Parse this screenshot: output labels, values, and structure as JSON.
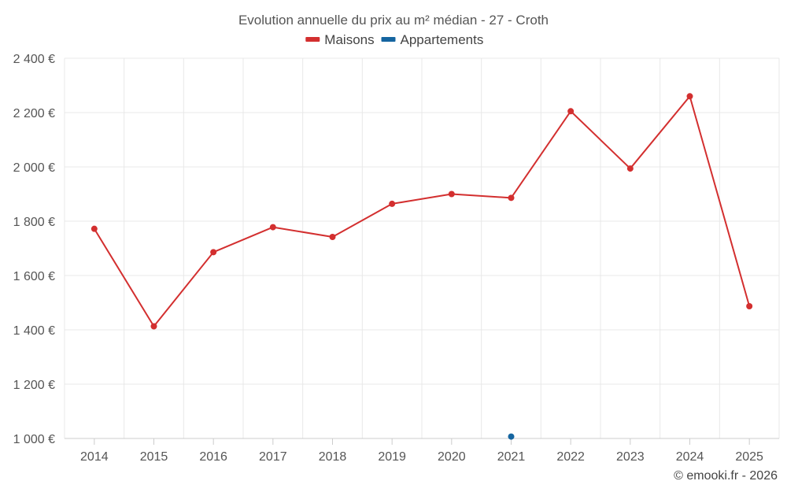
{
  "chart_data": {
    "type": "line",
    "title": "Evolution annuelle du prix au m² médian - 27 - Croth",
    "categories": [
      "2014",
      "2015",
      "2016",
      "2017",
      "2018",
      "2019",
      "2020",
      "2021",
      "2022",
      "2023",
      "2024",
      "2025"
    ],
    "series": [
      {
        "name": "Maisons",
        "color": "#d32f2f",
        "values": [
          1772,
          1413,
          1686,
          1778,
          1742,
          1864,
          1900,
          1886,
          2205,
          1994,
          2260,
          1487
        ]
      },
      {
        "name": "Appartements",
        "color": "#1565a0",
        "values": [
          null,
          null,
          null,
          null,
          null,
          null,
          null,
          1007,
          null,
          null,
          null,
          null
        ]
      }
    ],
    "ylim": [
      1000,
      2400
    ],
    "yticks": [
      1000,
      1200,
      1400,
      1600,
      1800,
      2000,
      2200,
      2400
    ],
    "ytick_labels": [
      "1 000 €",
      "1 200 €",
      "1 400 €",
      "1 600 €",
      "1 800 €",
      "2 000 €",
      "2 200 €",
      "2 400 €"
    ],
    "grid": true,
    "legend_position": "top-center",
    "credit": "© emooki.fr - 2026"
  }
}
